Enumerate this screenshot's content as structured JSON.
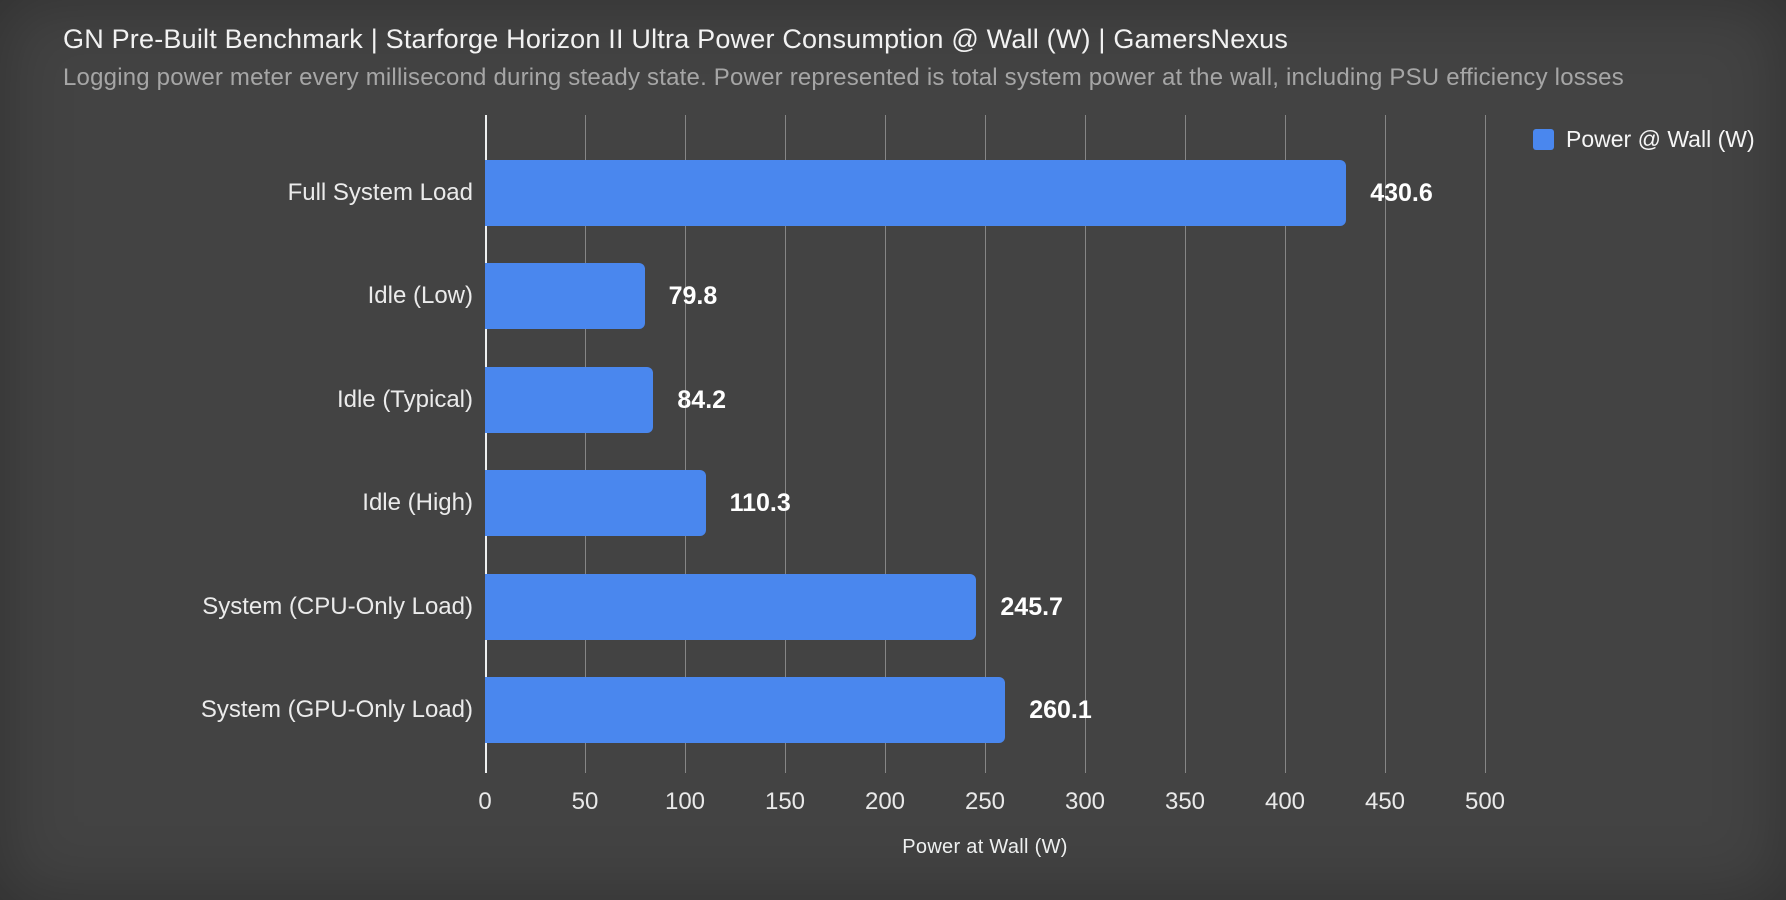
{
  "header": {
    "title": "GN Pre-Built Benchmark | Starforge Horizon II Ultra Power Consumption @ Wall (W) | GamersNexus",
    "subtitle": "Logging power meter every millisecond during steady state. Power represented is total system power at the wall, including PSU efficiency losses"
  },
  "legend": {
    "label": "Power @ Wall (W)",
    "swatch_icon": "legend-swatch-square",
    "swatch_color": "#4a87ee"
  },
  "chart_data": {
    "type": "bar",
    "orientation": "horizontal",
    "title": "GN Pre-Built Benchmark | Starforge Horizon II Ultra Power Consumption @ Wall (W) | GamersNexus",
    "subtitle": "Logging power meter every millisecond during steady state. Power represented is total system power at the wall, including PSU efficiency losses",
    "series_name": "Power @ Wall (W)",
    "categories": [
      "Full System Load",
      "Idle (Low)",
      "Idle (Typical)",
      "Idle (High)",
      "System (CPU-Only Load)",
      "System (GPU-Only Load)"
    ],
    "values": [
      430.6,
      79.8,
      84.2,
      110.3,
      245.7,
      260.1
    ],
    "value_labels": [
      "430.6",
      "79.8",
      "84.2",
      "110.3",
      "245.7",
      "260.1"
    ],
    "xlabel": "Power at Wall (W)",
    "ylabel": "",
    "xlim": [
      0,
      500
    ],
    "xticks": [
      0,
      50,
      100,
      150,
      200,
      250,
      300,
      350,
      400,
      450,
      500
    ],
    "grid": true,
    "legend_position": "top-right",
    "bar_color": "#4a87ee",
    "background_color": "#434343"
  }
}
